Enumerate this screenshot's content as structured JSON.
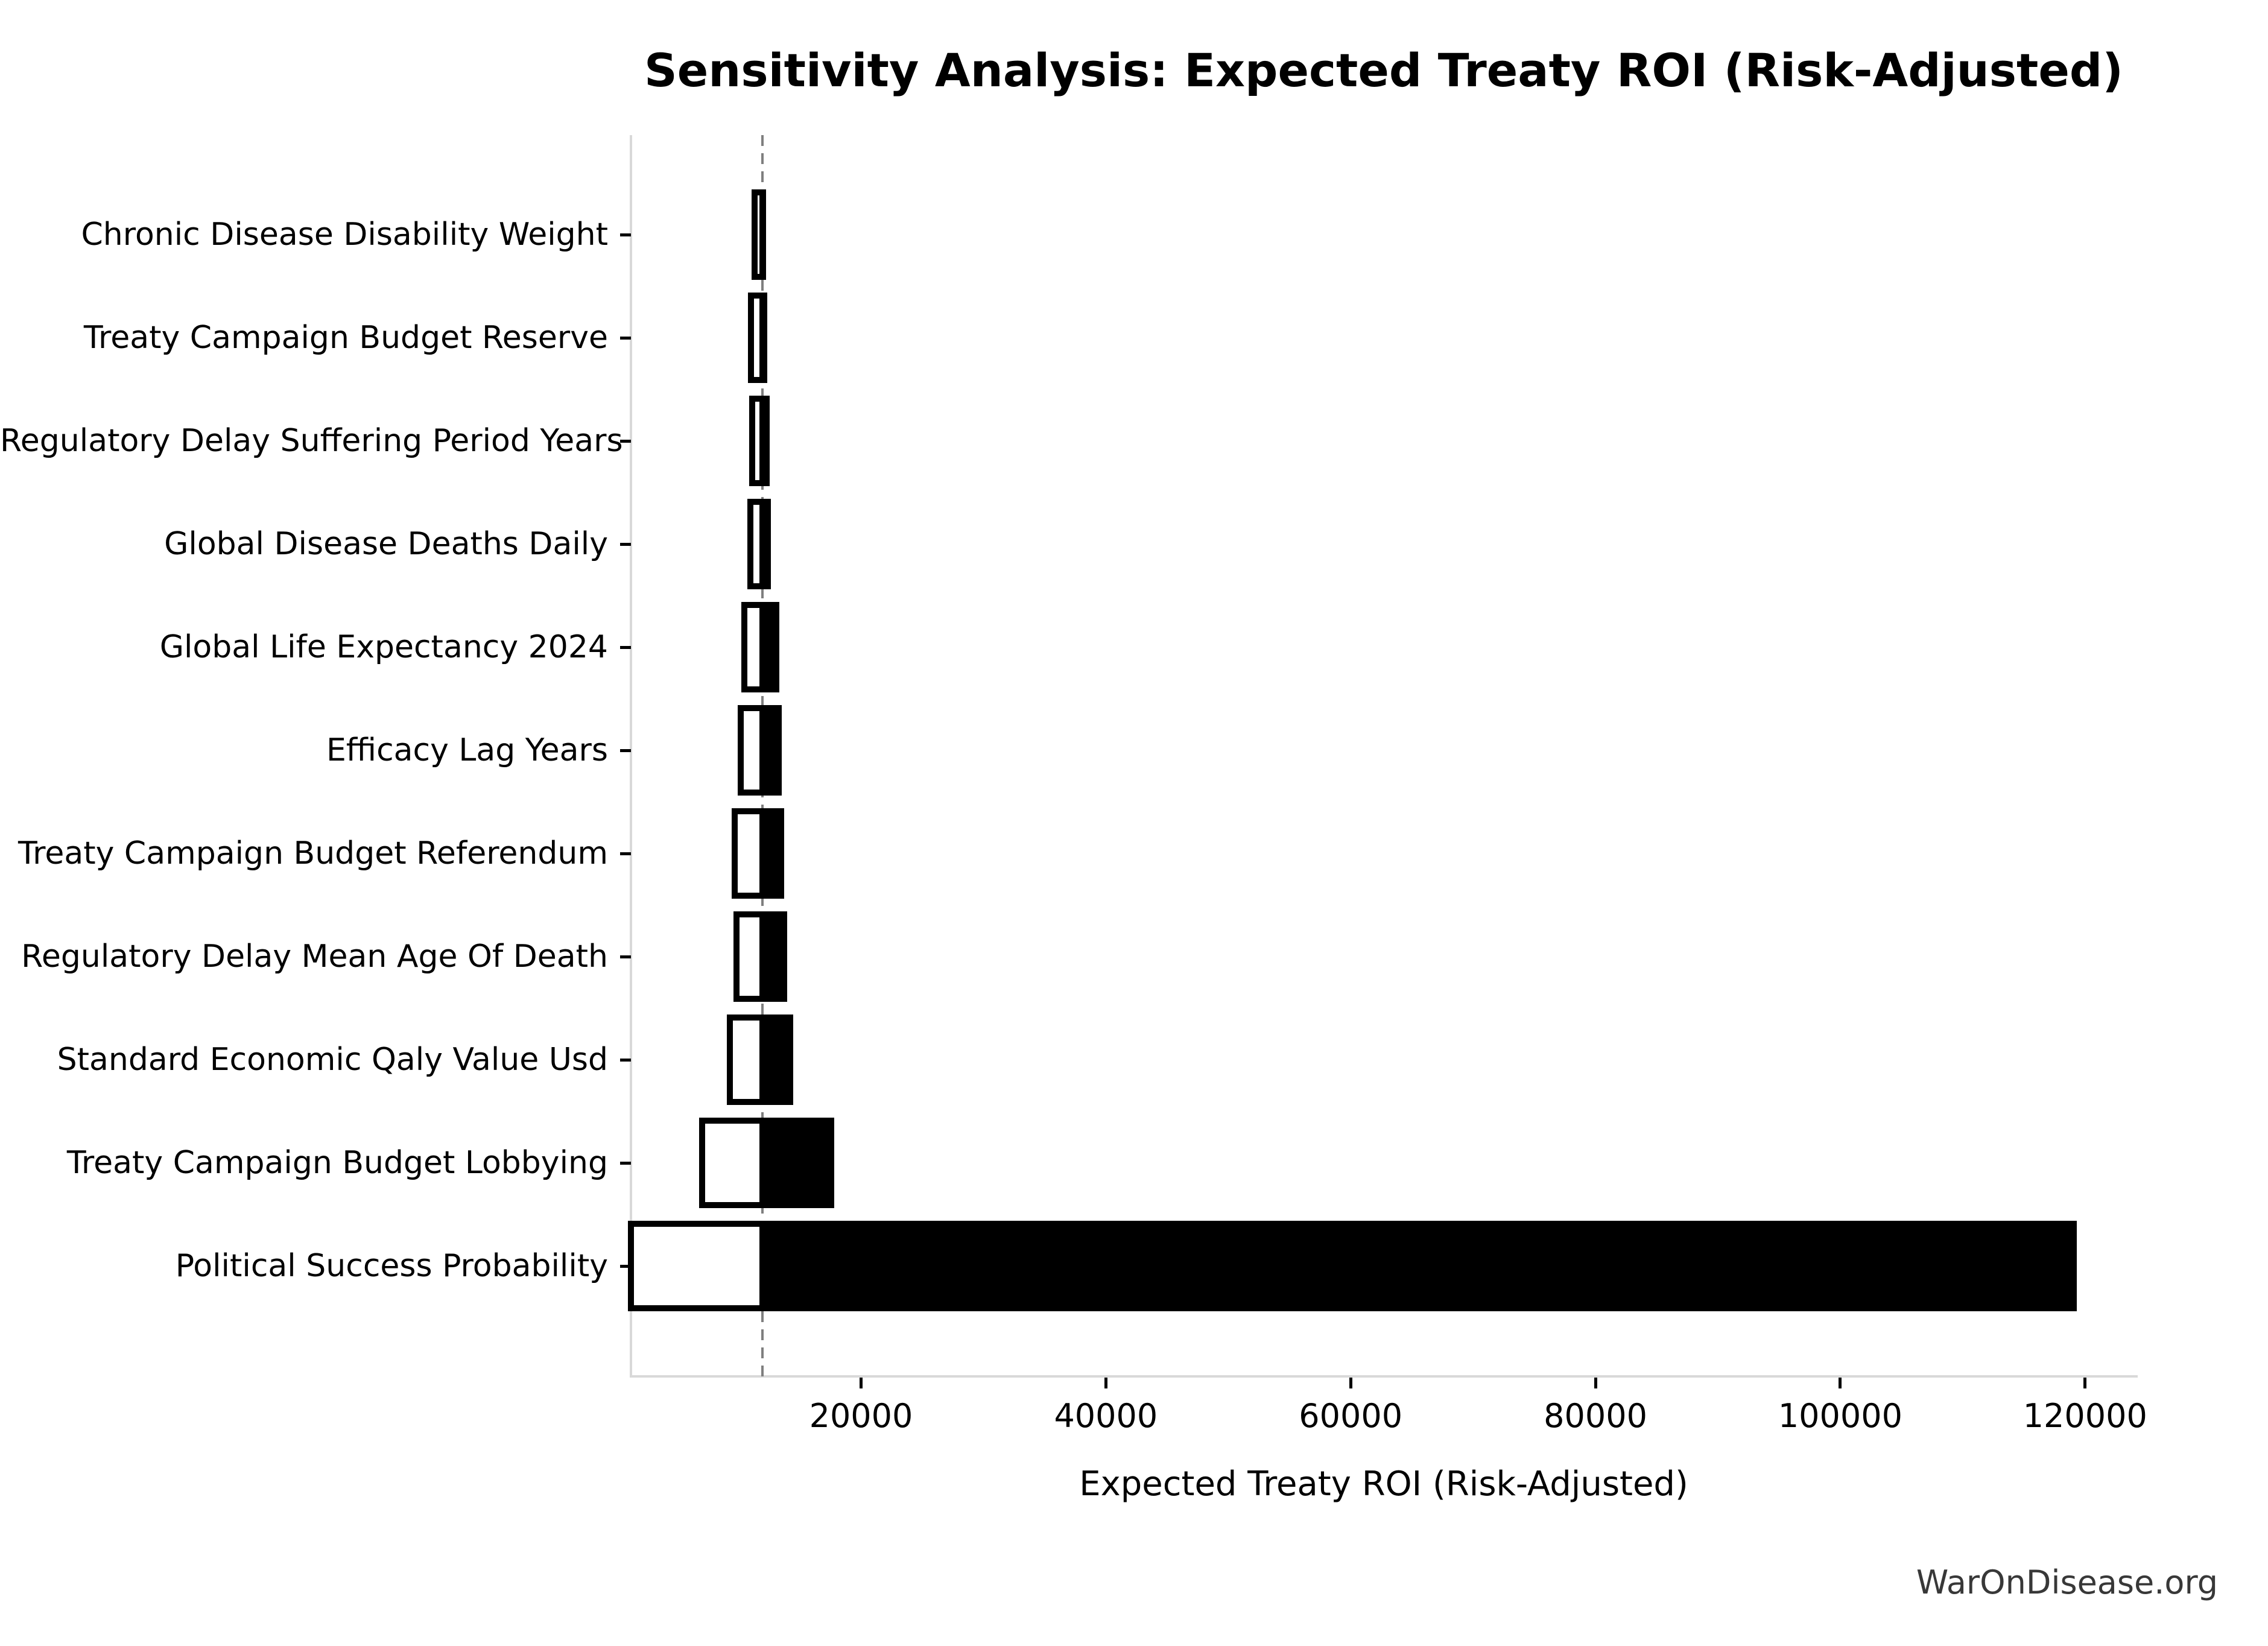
{
  "chart_data": {
    "type": "bar",
    "variant": "tornado-sensitivity",
    "title": "Sensitivity Analysis: Expected Treaty ROI (Risk-Adjusted)",
    "xlabel": "Expected Treaty ROI (Risk-Adjusted)",
    "watermark": "WarOnDisease.org",
    "baseline_value": 11950,
    "xlim": [
      1200,
      124200
    ],
    "xticks": [
      20000,
      40000,
      60000,
      80000,
      100000,
      120000
    ],
    "xtick_labels": [
      "20000",
      "40000",
      "60000",
      "80000",
      "100000",
      "120000"
    ],
    "grid": false,
    "legend": null,
    "bar_colors": {
      "low_fill": "#ffffff",
      "low_edge": "#000000",
      "high_fill": "#000000"
    },
    "baseline_line": {
      "color": "#7f7f7f",
      "style": "dashed"
    },
    "rows": [
      {
        "label": "Chronic Disease Disability Weight",
        "low": 11300,
        "high": 12250
      },
      {
        "label": "Treaty Campaign Budget Reserve",
        "low": 11000,
        "high": 12350
      },
      {
        "label": "Regulatory Delay Suffering Period Years",
        "low": 11100,
        "high": 12550
      },
      {
        "label": "Global Disease Deaths Daily",
        "low": 10950,
        "high": 12650
      },
      {
        "label": "Global Life Expectancy 2024",
        "low": 10450,
        "high": 13300
      },
      {
        "label": "Efficacy Lag Years",
        "low": 10150,
        "high": 13500
      },
      {
        "label": "Treaty Campaign Budget Referendum",
        "low": 9700,
        "high": 13700
      },
      {
        "label": "Regulatory Delay Mean Age Of Death",
        "low": 9800,
        "high": 13950
      },
      {
        "label": "Standard Economic Qaly Value Usd",
        "low": 9300,
        "high": 14450
      },
      {
        "label": "Treaty Campaign Budget Lobbying",
        "low": 7000,
        "high": 17800
      },
      {
        "label": "Political Success Probability",
        "low": 1200,
        "high": 119300
      }
    ]
  }
}
